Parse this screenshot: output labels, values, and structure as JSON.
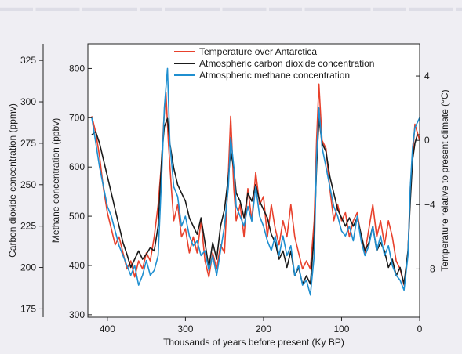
{
  "chart_data": {
    "type": "line",
    "xlabel": "Thousands of years before present (Ky BP)",
    "x_ticks": [
      400,
      300,
      200,
      100,
      0
    ],
    "x_range": [
      425,
      0
    ],
    "y_axes": [
      {
        "name": "co2",
        "label": "Carbon dioxide concentration (ppmv)",
        "range": [
          170,
          335
        ],
        "ticks": [
          175,
          200,
          225,
          250,
          275,
          300,
          325
        ]
      },
      {
        "name": "ch4",
        "label": "Methane concentration (ppbv)",
        "range": [
          295,
          850
        ],
        "ticks": [
          300,
          400,
          500,
          600,
          700,
          800
        ]
      },
      {
        "name": "temp",
        "label": "Temperature relative to present climate (°C)",
        "range": [
          -11,
          6
        ],
        "ticks": [
          4,
          0,
          -4,
          -8
        ],
        "tick_labels": [
          "4",
          "0",
          "−4",
          "−8"
        ]
      }
    ],
    "legend_position": "top",
    "series": [
      {
        "name": "Temperature over Antarctica",
        "axis": "temp",
        "color": "#e8412c",
        "points": [
          [
            420,
            1.5
          ],
          [
            415,
            0.5
          ],
          [
            410,
            -1
          ],
          [
            405,
            -3
          ],
          [
            400,
            -4.5
          ],
          [
            395,
            -5.5
          ],
          [
            390,
            -6.5
          ],
          [
            385,
            -6
          ],
          [
            380,
            -7
          ],
          [
            375,
            -8
          ],
          [
            370,
            -7.5
          ],
          [
            365,
            -8.5
          ],
          [
            360,
            -7.5
          ],
          [
            355,
            -8
          ],
          [
            350,
            -7
          ],
          [
            345,
            -7.5
          ],
          [
            340,
            -6
          ],
          [
            335,
            -4
          ],
          [
            330,
            -1
          ],
          [
            328,
            1
          ],
          [
            325,
            3
          ],
          [
            322,
            0
          ],
          [
            318,
            -3
          ],
          [
            315,
            -5
          ],
          [
            310,
            -4
          ],
          [
            305,
            -6
          ],
          [
            300,
            -5.5
          ],
          [
            295,
            -7
          ],
          [
            290,
            -6
          ],
          [
            285,
            -7
          ],
          [
            280,
            -5
          ],
          [
            275,
            -7.5
          ],
          [
            270,
            -8.5
          ],
          [
            265,
            -7
          ],
          [
            260,
            -8
          ],
          [
            255,
            -6.5
          ],
          [
            250,
            -7
          ],
          [
            245,
            -2
          ],
          [
            242,
            1.5
          ],
          [
            238,
            -3
          ],
          [
            235,
            -5
          ],
          [
            230,
            -4
          ],
          [
            225,
            -6
          ],
          [
            220,
            -3
          ],
          [
            215,
            -5
          ],
          [
            210,
            -2
          ],
          [
            205,
            -4
          ],
          [
            200,
            -3.5
          ],
          [
            195,
            -6
          ],
          [
            190,
            -4
          ],
          [
            185,
            -5.5
          ],
          [
            180,
            -6.5
          ],
          [
            175,
            -5
          ],
          [
            170,
            -6
          ],
          [
            165,
            -4
          ],
          [
            160,
            -6
          ],
          [
            155,
            -7
          ],
          [
            150,
            -8
          ],
          [
            145,
            -7.5
          ],
          [
            140,
            -8
          ],
          [
            135,
            -5
          ],
          [
            132,
            0
          ],
          [
            129,
            3.5
          ],
          [
            125,
            0
          ],
          [
            120,
            -0.5
          ],
          [
            115,
            -3
          ],
          [
            110,
            -5
          ],
          [
            105,
            -4
          ],
          [
            100,
            -5
          ],
          [
            95,
            -4.5
          ],
          [
            90,
            -6
          ],
          [
            85,
            -5
          ],
          [
            80,
            -4.5
          ],
          [
            75,
            -6
          ],
          [
            70,
            -7
          ],
          [
            65,
            -5.5
          ],
          [
            60,
            -4
          ],
          [
            55,
            -6
          ],
          [
            50,
            -5
          ],
          [
            45,
            -6.5
          ],
          [
            40,
            -5
          ],
          [
            35,
            -6
          ],
          [
            30,
            -7.5
          ],
          [
            25,
            -8
          ],
          [
            20,
            -9
          ],
          [
            15,
            -7
          ],
          [
            12,
            -3
          ],
          [
            9,
            -1
          ],
          [
            6,
            1
          ],
          [
            3,
            0.5
          ],
          [
            0,
            0
          ]
        ]
      },
      {
        "name": "Atmospheric carbon dioxide concentration",
        "axis": "co2",
        "color": "#1b1b1b",
        "points": [
          [
            420,
            280
          ],
          [
            415,
            282
          ],
          [
            410,
            275
          ],
          [
            405,
            265
          ],
          [
            400,
            255
          ],
          [
            395,
            245
          ],
          [
            390,
            235
          ],
          [
            385,
            225
          ],
          [
            380,
            215
          ],
          [
            375,
            208
          ],
          [
            370,
            200
          ],
          [
            365,
            205
          ],
          [
            360,
            210
          ],
          [
            355,
            205
          ],
          [
            350,
            208
          ],
          [
            345,
            212
          ],
          [
            340,
            210
          ],
          [
            335,
            225
          ],
          [
            330,
            270
          ],
          [
            327,
            285
          ],
          [
            323,
            290
          ],
          [
            320,
            275
          ],
          [
            315,
            260
          ],
          [
            310,
            250
          ],
          [
            305,
            245
          ],
          [
            300,
            240
          ],
          [
            295,
            230
          ],
          [
            290,
            225
          ],
          [
            285,
            220
          ],
          [
            280,
            230
          ],
          [
            275,
            215
          ],
          [
            270,
            200
          ],
          [
            265,
            215
          ],
          [
            260,
            205
          ],
          [
            255,
            225
          ],
          [
            250,
            235
          ],
          [
            245,
            255
          ],
          [
            242,
            270
          ],
          [
            238,
            260
          ],
          [
            235,
            245
          ],
          [
            230,
            240
          ],
          [
            225,
            230
          ],
          [
            220,
            245
          ],
          [
            215,
            240
          ],
          [
            210,
            250
          ],
          [
            205,
            240
          ],
          [
            200,
            235
          ],
          [
            195,
            230
          ],
          [
            190,
            220
          ],
          [
            185,
            215
          ],
          [
            180,
            205
          ],
          [
            175,
            210
          ],
          [
            170,
            200
          ],
          [
            165,
            210
          ],
          [
            160,
            195
          ],
          [
            155,
            200
          ],
          [
            150,
            190
          ],
          [
            145,
            195
          ],
          [
            140,
            190
          ],
          [
            135,
            220
          ],
          [
            132,
            260
          ],
          [
            129,
            290
          ],
          [
            125,
            275
          ],
          [
            120,
            270
          ],
          [
            115,
            255
          ],
          [
            110,
            245
          ],
          [
            105,
            235
          ],
          [
            100,
            230
          ],
          [
            95,
            225
          ],
          [
            90,
            230
          ],
          [
            85,
            225
          ],
          [
            80,
            230
          ],
          [
            75,
            220
          ],
          [
            70,
            210
          ],
          [
            65,
            215
          ],
          [
            60,
            225
          ],
          [
            55,
            210
          ],
          [
            50,
            215
          ],
          [
            45,
            210
          ],
          [
            40,
            200
          ],
          [
            35,
            205
          ],
          [
            30,
            195
          ],
          [
            25,
            200
          ],
          [
            20,
            190
          ],
          [
            15,
            210
          ],
          [
            12,
            240
          ],
          [
            9,
            265
          ],
          [
            6,
            275
          ],
          [
            3,
            280
          ],
          [
            0,
            280
          ]
        ]
      },
      {
        "name": "Atmospheric methane concentration",
        "axis": "ch4",
        "color": "#1f8fd0",
        "points": [
          [
            420,
            700
          ],
          [
            415,
            650
          ],
          [
            410,
            600
          ],
          [
            405,
            560
          ],
          [
            400,
            520
          ],
          [
            395,
            500
          ],
          [
            390,
            470
          ],
          [
            385,
            440
          ],
          [
            380,
            420
          ],
          [
            375,
            400
          ],
          [
            370,
            380
          ],
          [
            365,
            400
          ],
          [
            360,
            360
          ],
          [
            355,
            380
          ],
          [
            350,
            410
          ],
          [
            345,
            380
          ],
          [
            340,
            390
          ],
          [
            335,
            420
          ],
          [
            330,
            600
          ],
          [
            327,
            720
          ],
          [
            323,
            800
          ],
          [
            320,
            650
          ],
          [
            315,
            560
          ],
          [
            310,
            540
          ],
          [
            305,
            480
          ],
          [
            300,
            500
          ],
          [
            295,
            460
          ],
          [
            290,
            440
          ],
          [
            285,
            450
          ],
          [
            280,
            420
          ],
          [
            275,
            430
          ],
          [
            270,
            390
          ],
          [
            265,
            420
          ],
          [
            260,
            380
          ],
          [
            255,
            430
          ],
          [
            250,
            480
          ],
          [
            245,
            560
          ],
          [
            242,
            660
          ],
          [
            238,
            600
          ],
          [
            235,
            520
          ],
          [
            230,
            500
          ],
          [
            225,
            480
          ],
          [
            220,
            520
          ],
          [
            215,
            490
          ],
          [
            210,
            560
          ],
          [
            205,
            500
          ],
          [
            200,
            480
          ],
          [
            195,
            450
          ],
          [
            190,
            430
          ],
          [
            185,
            460
          ],
          [
            180,
            420
          ],
          [
            175,
            460
          ],
          [
            170,
            420
          ],
          [
            165,
            440
          ],
          [
            160,
            380
          ],
          [
            155,
            400
          ],
          [
            150,
            360
          ],
          [
            145,
            370
          ],
          [
            140,
            340
          ],
          [
            135,
            420
          ],
          [
            132,
            620
          ],
          [
            129,
            720
          ],
          [
            125,
            640
          ],
          [
            120,
            600
          ],
          [
            115,
            560
          ],
          [
            110,
            520
          ],
          [
            105,
            500
          ],
          [
            100,
            470
          ],
          [
            95,
            460
          ],
          [
            90,
            480
          ],
          [
            85,
            450
          ],
          [
            80,
            500
          ],
          [
            75,
            450
          ],
          [
            70,
            420
          ],
          [
            65,
            440
          ],
          [
            60,
            480
          ],
          [
            55,
            430
          ],
          [
            50,
            460
          ],
          [
            45,
            420
          ],
          [
            40,
            440
          ],
          [
            35,
            400
          ],
          [
            30,
            380
          ],
          [
            25,
            370
          ],
          [
            20,
            350
          ],
          [
            15,
            420
          ],
          [
            12,
            560
          ],
          [
            9,
            640
          ],
          [
            6,
            680
          ],
          [
            3,
            690
          ],
          [
            0,
            700
          ]
        ]
      }
    ]
  }
}
